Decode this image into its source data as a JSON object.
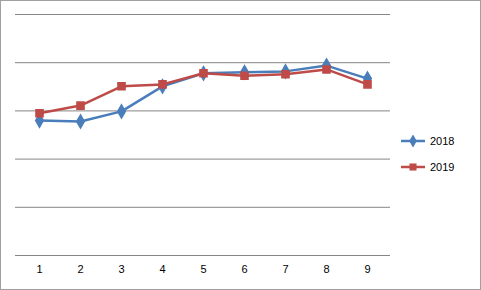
{
  "chart_data": {
    "type": "line",
    "categories": [
      "1",
      "2",
      "3",
      "4",
      "5",
      "6",
      "7",
      "8",
      "9"
    ],
    "series": [
      {
        "name": "2018",
        "color": "#4a7ebb",
        "marker": "diamond",
        "values": [
          2.8,
          2.78,
          2.99,
          3.51,
          3.78,
          3.8,
          3.82,
          3.94,
          3.67
        ]
      },
      {
        "name": "2019",
        "color": "#be4b48",
        "marker": "square",
        "values": [
          2.95,
          3.11,
          3.51,
          3.55,
          3.78,
          3.73,
          3.76,
          3.86,
          3.55
        ]
      }
    ],
    "ylim": [
      0,
      5
    ],
    "yticks": [
      0,
      1,
      2,
      3,
      4,
      5
    ],
    "grid": true,
    "tick_labels": "x",
    "legend": "right"
  }
}
